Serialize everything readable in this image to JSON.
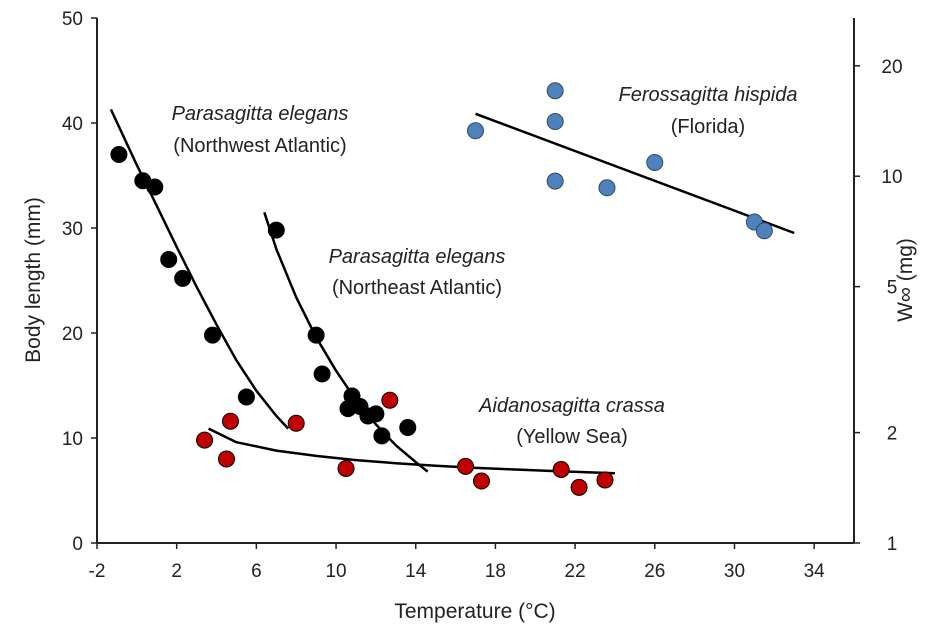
{
  "chart_data": {
    "type": "scatter",
    "title": "",
    "xlabel": "Temperature (°C)",
    "ylabel": "Body length (mm)",
    "y2label": "W∞ (mg)",
    "xlim": [
      -2,
      36
    ],
    "ylim": [
      0,
      50
    ],
    "y2lim": [
      1,
      27
    ],
    "y2scale": "log",
    "x_ticks": [
      -2,
      2,
      6,
      10,
      14,
      18,
      22,
      26,
      30,
      34
    ],
    "y_ticks": [
      0,
      10,
      20,
      30,
      40,
      50
    ],
    "y2_ticks": [
      1,
      2,
      5,
      10,
      20
    ],
    "grid": false,
    "legend": "none",
    "series": [
      {
        "color": "#000000",
        "edge": "#000000",
        "points": [
          [
            -0.9,
            37.0
          ],
          [
            0.3,
            34.5
          ],
          [
            0.9,
            33.9
          ],
          [
            1.6,
            27.0
          ],
          [
            2.3,
            25.2
          ],
          [
            3.8,
            19.8
          ],
          [
            5.5,
            13.9
          ]
        ],
        "fit": [
          [
            -1.3,
            41.3
          ],
          [
            0.0,
            36.0
          ],
          [
            1.0,
            32.1
          ],
          [
            2.0,
            28.2
          ],
          [
            3.0,
            24.4
          ],
          [
            4.0,
            20.8
          ],
          [
            5.0,
            17.4
          ],
          [
            6.0,
            14.5
          ],
          [
            7.0,
            12.1
          ],
          [
            7.6,
            10.9
          ]
        ]
      },
      {
        "color": "#000000",
        "edge": "#000000",
        "points": [
          [
            7.0,
            29.8
          ],
          [
            9.0,
            19.8
          ],
          [
            9.3,
            16.1
          ],
          [
            10.6,
            12.8
          ],
          [
            10.8,
            14.0
          ],
          [
            11.2,
            13.0
          ],
          [
            11.6,
            12.1
          ],
          [
            12.0,
            12.3
          ],
          [
            12.3,
            10.2
          ],
          [
            13.6,
            11.0
          ]
        ],
        "fit": [
          [
            6.4,
            31.5
          ],
          [
            7.0,
            28.0
          ],
          [
            8.0,
            23.4
          ],
          [
            9.0,
            19.6
          ],
          [
            10.0,
            16.4
          ],
          [
            11.0,
            13.6
          ],
          [
            12.0,
            11.3
          ],
          [
            13.0,
            9.3
          ],
          [
            14.0,
            7.7
          ],
          [
            14.6,
            6.8
          ]
        ]
      },
      {
        "color": "#c00000",
        "edge": "#000000",
        "points": [
          [
            3.4,
            9.8
          ],
          [
            4.5,
            8.0
          ],
          [
            4.7,
            11.6
          ],
          [
            8.0,
            11.4
          ],
          [
            10.5,
            7.1
          ],
          [
            12.7,
            13.6
          ],
          [
            16.5,
            7.3
          ],
          [
            17.3,
            5.9
          ],
          [
            21.3,
            7.0
          ],
          [
            22.2,
            5.3
          ],
          [
            23.5,
            6.0
          ]
        ],
        "fit": [
          [
            3.6,
            10.9
          ],
          [
            5.0,
            9.6
          ],
          [
            7.0,
            8.8
          ],
          [
            9.0,
            8.3
          ],
          [
            11.0,
            7.9
          ],
          [
            13.0,
            7.6
          ],
          [
            15.0,
            7.35
          ],
          [
            17.0,
            7.15
          ],
          [
            19.0,
            7.0
          ],
          [
            21.0,
            6.85
          ],
          [
            24.0,
            6.65
          ]
        ]
      },
      {
        "color": "#4f81bd",
        "edge": "#2e4a6e",
        "axis": "y2",
        "points": [
          [
            17.0,
            13.3
          ],
          [
            21.0,
            17.1
          ],
          [
            21.0,
            14.1
          ],
          [
            21.0,
            9.7
          ],
          [
            23.6,
            9.3
          ],
          [
            26.0,
            10.9
          ],
          [
            31.0,
            7.5
          ],
          [
            31.5,
            7.1
          ]
        ],
        "fit": [
          [
            17.0,
            14.8
          ],
          [
            33.0,
            7.0
          ]
        ]
      }
    ],
    "annotations": [
      {
        "italic": "Parasagitta elegans",
        "region": "(Northwest Atlantic)"
      },
      {
        "italic": "Parasagitta elegans",
        "region": "(Northeast Atlantic)"
      },
      {
        "italic": "Aidanosagitta crassa",
        "region": "(Yellow Sea)"
      },
      {
        "italic": "Ferossagitta hispida",
        "region": "(Florida)"
      }
    ]
  }
}
